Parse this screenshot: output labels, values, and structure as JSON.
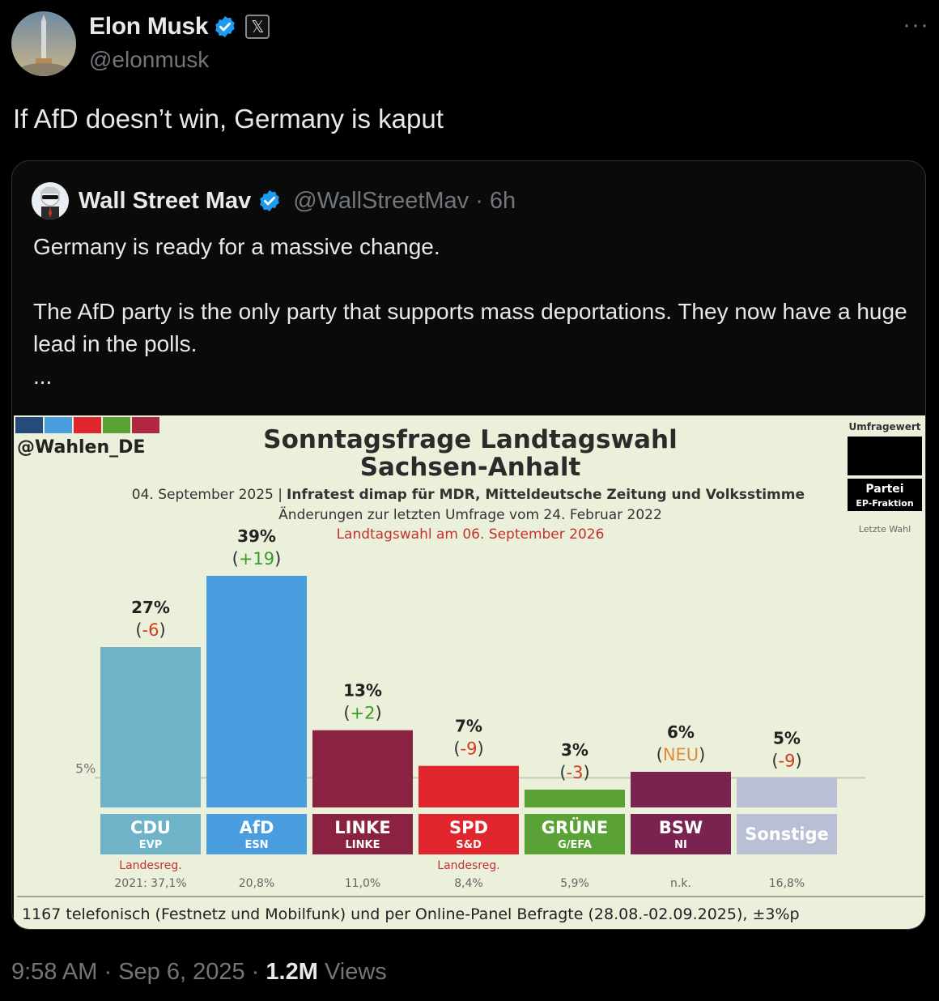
{
  "tweet": {
    "author_name": "Elon Musk",
    "author_handle": "@elonmusk",
    "text": "If AfD doesn’t win, Germany is kaput",
    "more_icon": "more-icon",
    "time": "9:58 AM",
    "date": "Sep 6, 2025",
    "views_count": "1.2M",
    "views_label": "Views"
  },
  "quote": {
    "author_name": "Wall Street Mav",
    "author_handle": "@WallStreetMav",
    "age": "· 6h",
    "line1": "Germany is ready for a massive change.",
    "line2": "The AfD party is the only party that supports mass deportations. They now have a huge lead in the polls.",
    "ellipsis": "..."
  },
  "chart_data": {
    "type": "bar",
    "watermark": "@Wahlen_DE",
    "title": "Sonntagsfrage Landtagswahl",
    "subtitle": "Sachsen-Anhalt",
    "source_date": "04. September 2025 |",
    "source_name": "Infratest dimap für MDR, Mitteldeutsche Zeitung und Volksstimme",
    "changes_note": "Änderungen zur letzten Umfrage vom 24. Februar 2022",
    "election_note": "Landtagswahl am 06. September 2026",
    "legend": {
      "top": "Umfragewert",
      "party": "Partei",
      "faction": "EP-Fraktion",
      "last": "Letzte Wahl"
    },
    "threshold_label": "5%",
    "threshold_value": 5,
    "ylim": [
      0,
      39
    ],
    "categories": [
      "CDU",
      "AfD",
      "LINKE",
      "SPD",
      "GRÜNE",
      "BSW",
      "Sonstige"
    ],
    "values": [
      27,
      39,
      13,
      7,
      3,
      6,
      5
    ],
    "value_labels": [
      "27%",
      "39%",
      "13%",
      "7%",
      "3%",
      "6%",
      "5%"
    ],
    "changes": [
      "-6",
      "+19",
      "+2",
      "-9",
      "-3",
      "NEU",
      "-9"
    ],
    "factions": [
      "EVP",
      "ESN",
      "LINKE",
      "S&D",
      "G/EFA",
      "NI",
      ""
    ],
    "last_election": [
      "2021: 37,1%",
      "20,8%",
      "11,0%",
      "8,4%",
      "5,9%",
      "n.k.",
      "16,8%"
    ],
    "landesreg": [
      "Landesreg.",
      "",
      "",
      "Landesreg.",
      "",
      "",
      ""
    ],
    "colors": [
      "#6fb3c8",
      "#4a9ee0",
      "#8b2242",
      "#e0252d",
      "#5aa136",
      "#7a2350",
      "#b9c0d6"
    ],
    "change_colors": {
      "positive": "#3a9a2a",
      "negative": "#d63a1a",
      "new": "#e08a3a"
    },
    "footer": "1167 telefonisch (Festnetz und Mobilfunk) und per Online-Panel Befragte (28.08.-02.09.2025), ±3%p"
  }
}
